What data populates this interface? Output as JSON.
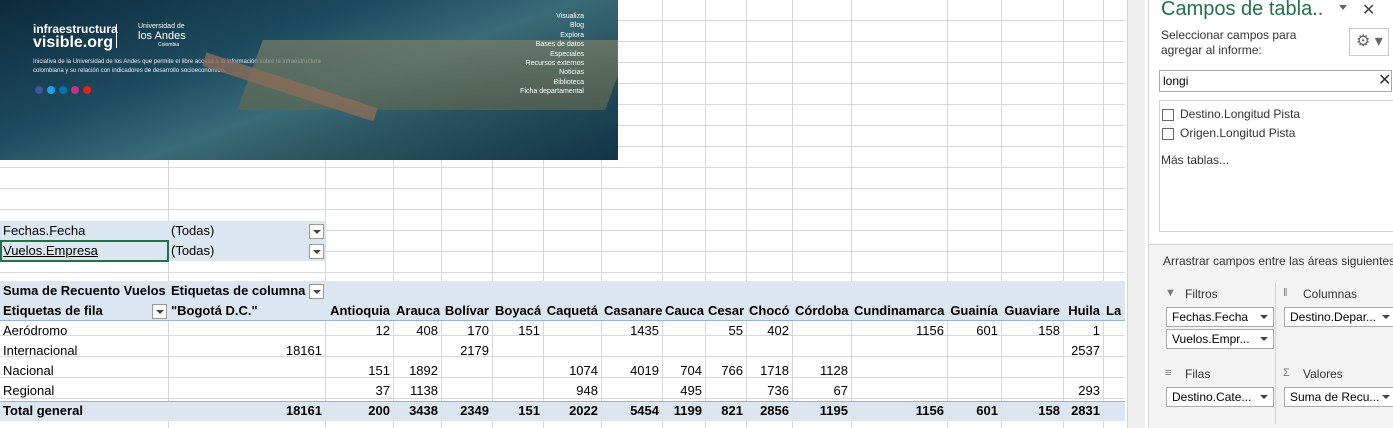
{
  "banner": {
    "brand_top": "infraestructura",
    "brand_bottom": "visible.org",
    "university_top": "Universidad de",
    "university_main": "los Andes",
    "university_country": "Colombia",
    "description": "Iniciativa de la Universidad de los Andes que permite el libre acceso a la información sobre la infraestructura colombiana y su relación con indicadores de desarrollo socioeconómico.",
    "menu": [
      "Visualiza",
      "Blog",
      "Explora",
      "Bases de datos",
      "Especiales",
      "Recursos externos",
      "Noticias",
      "Biblioteca",
      "Ficha departamental"
    ]
  },
  "pivot": {
    "filters": [
      {
        "field": "Fechas.Fecha",
        "value": "(Todas)"
      },
      {
        "field": "Vuelos.Empresa",
        "value": "(Todas)"
      }
    ],
    "value_label": "Suma de Recuento Vuelos",
    "column_label": "Etiquetas de columna",
    "row_label": "Etiquetas de fila",
    "columns": [
      "\"Bogotá D.C.\"",
      "Antioquia",
      "Arauca",
      "Bolívar",
      "Boyacá",
      "Caquetá",
      "Casanare",
      "Cauca",
      "Cesar",
      "Chocó",
      "Córdoba",
      "Cundinamarca",
      "Guainía",
      "Guaviare",
      "Huila",
      "La C"
    ],
    "rows": [
      {
        "label": "Aeródromo",
        "cells": [
          null,
          12,
          408,
          170,
          151,
          null,
          1435,
          null,
          55,
          402,
          null,
          1156,
          601,
          158,
          1,
          null
        ]
      },
      {
        "label": "Internacional",
        "cells": [
          18161,
          null,
          null,
          2179,
          null,
          null,
          null,
          null,
          null,
          null,
          null,
          null,
          null,
          null,
          2537,
          null
        ]
      },
      {
        "label": "Nacional",
        "cells": [
          null,
          151,
          1892,
          null,
          null,
          1074,
          4019,
          704,
          766,
          1718,
          1128,
          null,
          null,
          null,
          null,
          null
        ]
      },
      {
        "label": "Regional",
        "cells": [
          null,
          37,
          1138,
          null,
          null,
          948,
          null,
          495,
          null,
          736,
          67,
          null,
          null,
          null,
          293,
          null
        ]
      }
    ],
    "total": {
      "label": "Total general",
      "cells": [
        18161,
        200,
        3438,
        2349,
        151,
        2022,
        5454,
        1199,
        821,
        2856,
        1195,
        1156,
        601,
        158,
        2831,
        null
      ]
    }
  },
  "pane": {
    "title": "Campos de tabla..",
    "instruction": "Seleccionar campos para agregar al informe:",
    "search": "longi",
    "fields": [
      "Destino.Longitud Pista",
      "Origen.Longitud Pista"
    ],
    "more": "Más tablas...",
    "drag_hint": "Arrastrar campos entre las áreas siguientes:",
    "areas": [
      {
        "name": "Filtros",
        "items": [
          "Fechas.Fecha",
          "Vuelos.Empr..."
        ]
      },
      {
        "name": "Columnas",
        "items": [
          "Destino.Depar..."
        ]
      },
      {
        "name": "Filas",
        "items": [
          "Destino.Cate..."
        ]
      },
      {
        "name": "Valores",
        "items": [
          "Suma de Recu..."
        ]
      }
    ]
  }
}
